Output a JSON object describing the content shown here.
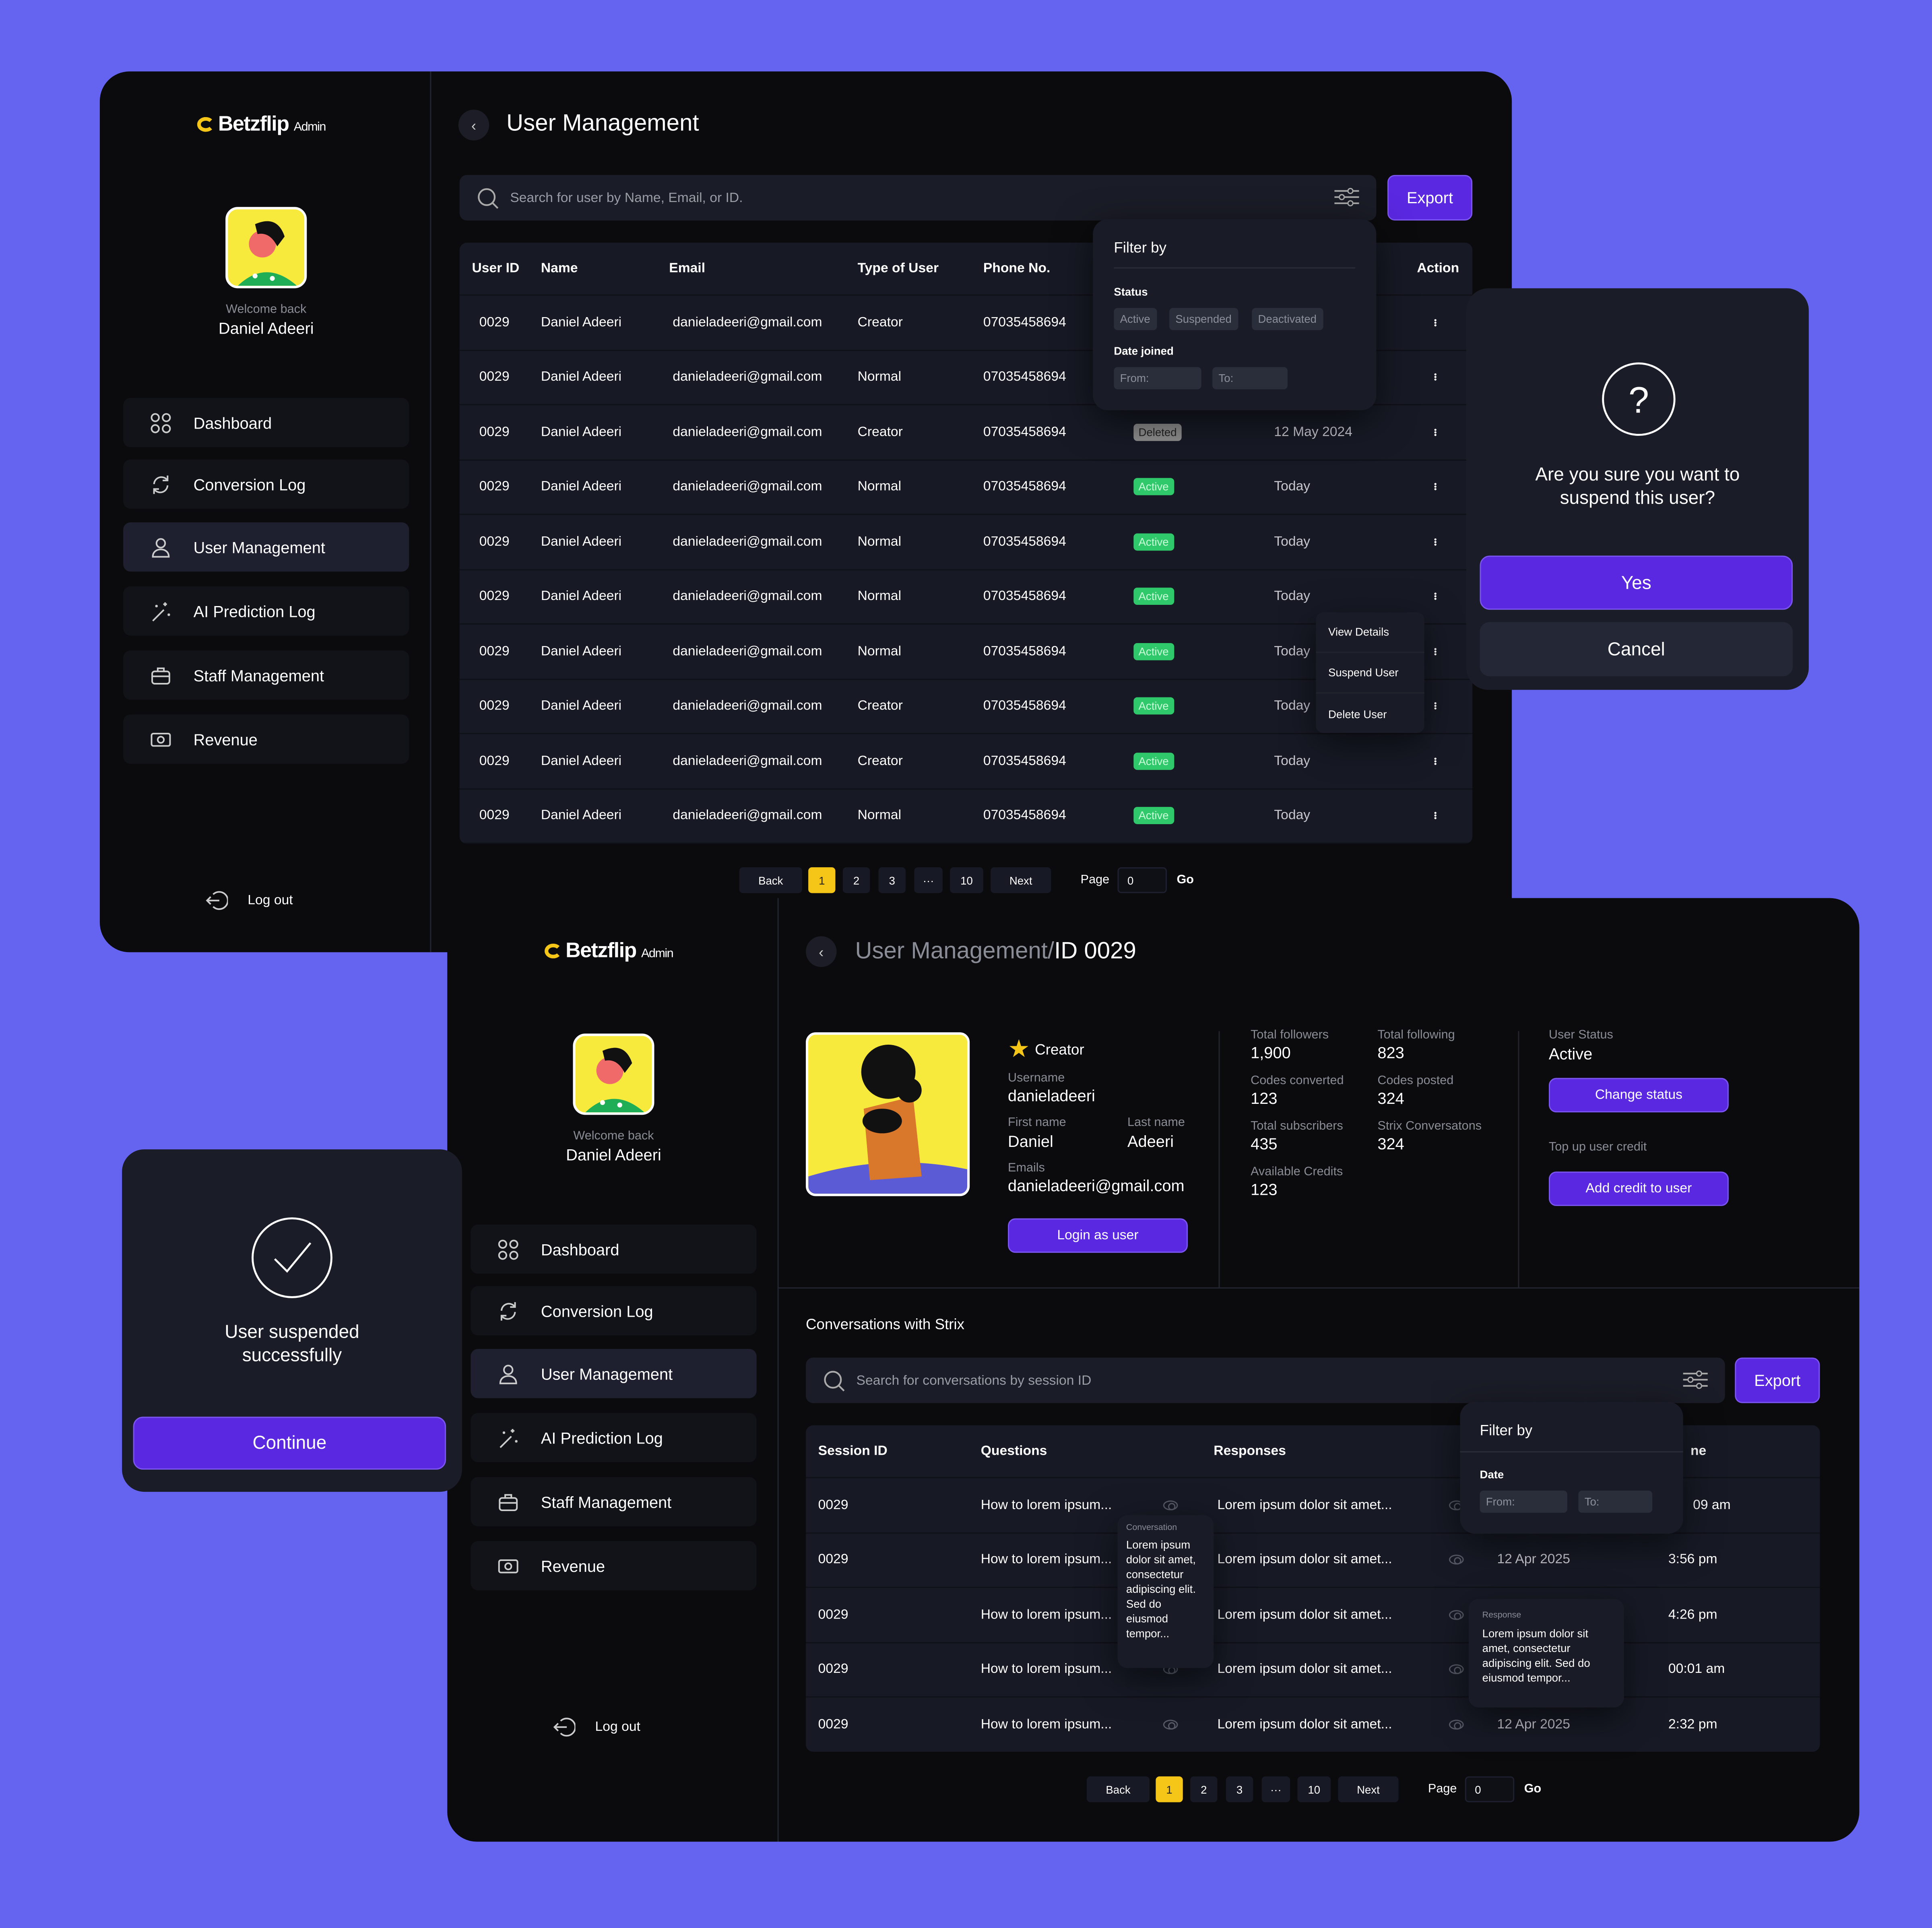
{
  "brand": {
    "name": "Betzflip",
    "suffix": "Admin",
    "accent": "#5a28e0",
    "highlight": "#f5c518",
    "background": "#6464f0"
  },
  "sidebar": {
    "welcome": "Welcome back",
    "user": "Daniel Adeeri",
    "items": [
      {
        "label": "Dashboard",
        "icon": "grid-icon"
      },
      {
        "label": "Conversion Log",
        "icon": "refresh-icon"
      },
      {
        "label": "User Management",
        "icon": "user-icon"
      },
      {
        "label": "AI Prediction Log",
        "icon": "magic-wand-icon"
      },
      {
        "label": "Staff Management",
        "icon": "briefcase-icon"
      },
      {
        "label": "Revenue",
        "icon": "cash-icon"
      }
    ],
    "logout": "Log out"
  },
  "users_page": {
    "title": "User Management",
    "search_placeholder": "Search for user by Name, Email, or ID.",
    "export": "Export",
    "columns": [
      "User ID",
      "Name",
      "Email",
      "Type of User",
      "Phone No.",
      "Action"
    ],
    "rows": [
      {
        "id": "0029",
        "name": "Daniel Adeeri",
        "email": "danieladeeri@gmail.com",
        "type": "Creator",
        "phone": "07035458694",
        "status": "",
        "date": ""
      },
      {
        "id": "0029",
        "name": "Daniel Adeeri",
        "email": "danieladeeri@gmail.com",
        "type": "Normal",
        "phone": "07035458694",
        "status": "",
        "date": ""
      },
      {
        "id": "0029",
        "name": "Daniel Adeeri",
        "email": "danieladeeri@gmail.com",
        "type": "Creator",
        "phone": "07035458694",
        "status": "Deleted",
        "date": "12 May 2024"
      },
      {
        "id": "0029",
        "name": "Daniel Adeeri",
        "email": "danieladeeri@gmail.com",
        "type": "Normal",
        "phone": "07035458694",
        "status": "Active",
        "date": "Today"
      },
      {
        "id": "0029",
        "name": "Daniel Adeeri",
        "email": "danieladeeri@gmail.com",
        "type": "Normal",
        "phone": "07035458694",
        "status": "Active",
        "date": "Today"
      },
      {
        "id": "0029",
        "name": "Daniel Adeeri",
        "email": "danieladeeri@gmail.com",
        "type": "Normal",
        "phone": "07035458694",
        "status": "Active",
        "date": "Today"
      },
      {
        "id": "0029",
        "name": "Daniel Adeeri",
        "email": "danieladeeri@gmail.com",
        "type": "Normal",
        "phone": "07035458694",
        "status": "Active",
        "date": "Today"
      },
      {
        "id": "0029",
        "name": "Daniel Adeeri",
        "email": "danieladeeri@gmail.com",
        "type": "Creator",
        "phone": "07035458694",
        "status": "Active",
        "date": "Today"
      },
      {
        "id": "0029",
        "name": "Daniel Adeeri",
        "email": "danieladeeri@gmail.com",
        "type": "Creator",
        "phone": "07035458694",
        "status": "Active",
        "date": "Today"
      },
      {
        "id": "0029",
        "name": "Daniel Adeeri",
        "email": "danieladeeri@gmail.com",
        "type": "Normal",
        "phone": "07035458694",
        "status": "Active",
        "date": "Today"
      }
    ],
    "filter": {
      "title": "Filter by",
      "status_label": "Status",
      "statuses": [
        "Active",
        "Suspended",
        "Deactivated"
      ],
      "date_label": "Date joined",
      "from": "From:",
      "to": "To:"
    },
    "menu": [
      "View Details",
      "Suspend User",
      "Delete User"
    ]
  },
  "pagination": {
    "back": "Back",
    "pages": [
      "1",
      "2",
      "3",
      "···",
      "10"
    ],
    "current": "1",
    "next": "Next",
    "page_label": "Page",
    "page_value": "0",
    "go": "Go"
  },
  "suspend_dialog": {
    "question": "Are you sure you want to suspend this user?",
    "yes": "Yes",
    "cancel": "Cancel"
  },
  "success_dialog": {
    "message": "User suspended successfully",
    "continue": "Continue"
  },
  "detail_page": {
    "title_prefix": "User Management/",
    "title_id": "ID 0029",
    "role": "Creator",
    "fields": {
      "username_label": "Username",
      "username": "danieladeeri",
      "first_label": "First name",
      "first": "Daniel",
      "last_label": "Last name",
      "last": "Adeeri",
      "email_label": "Emails",
      "email": "danieladeeri@gmail.com"
    },
    "login_as": "Login as user",
    "stats": [
      {
        "label": "Total followers",
        "value": "1,900"
      },
      {
        "label": "Total following",
        "value": "823"
      },
      {
        "label": "Codes converted",
        "value": "123"
      },
      {
        "label": "Codes posted",
        "value": "324"
      },
      {
        "label": "Total subscribers",
        "value": "435"
      },
      {
        "label": "Strix Conversatons",
        "value": "324"
      },
      {
        "label": "Available Credits",
        "value": "123"
      }
    ],
    "status_label": "User Status",
    "status": "Active",
    "change_status": "Change status",
    "topup_label": "Top up user credit",
    "add_credit": "Add credit to user",
    "conv_title": "Conversations with Strix",
    "conv_search": "Search for conversations by session ID",
    "export": "Export",
    "conv_columns": [
      "Session ID",
      "Questions",
      "Responses",
      "ne"
    ],
    "conv_rows": [
      {
        "id": "0029",
        "q": "How to lorem ipsum...",
        "r": "Lorem ipsum dolor sit amet...",
        "date": "",
        "time": "09 am"
      },
      {
        "id": "0029",
        "q": "How to lorem ipsum...",
        "r": "Lorem ipsum dolor sit amet...",
        "date": "12 Apr 2025",
        "time": "3:56 pm"
      },
      {
        "id": "0029",
        "q": "How to lorem ipsum...",
        "r": "Lorem ipsum dolor sit amet...",
        "date": "",
        "time": "4:26 pm"
      },
      {
        "id": "0029",
        "q": "How to lorem ipsum...",
        "r": "Lorem ipsum dolor sit amet...",
        "date": "",
        "time": "00:01 am"
      },
      {
        "id": "0029",
        "q": "How to lorem ipsum...",
        "r": "Lorem ipsum dolor sit amet...",
        "date": "12 Apr 2025",
        "time": "2:32 pm"
      }
    ],
    "filter": {
      "title": "Filter by",
      "date_label": "Date",
      "from": "From:",
      "to": "To:"
    },
    "conv_tip": {
      "label": "Conversation",
      "text": "Lorem ipsum dolor sit amet,  consectetur adipiscing elit. Sed do eiusmod tempor..."
    },
    "resp_tip": {
      "label": "Response",
      "text": "Lorem ipsum dolor sit amet,  consectetur adipiscing elit. Sed do eiusmod tempor..."
    }
  }
}
